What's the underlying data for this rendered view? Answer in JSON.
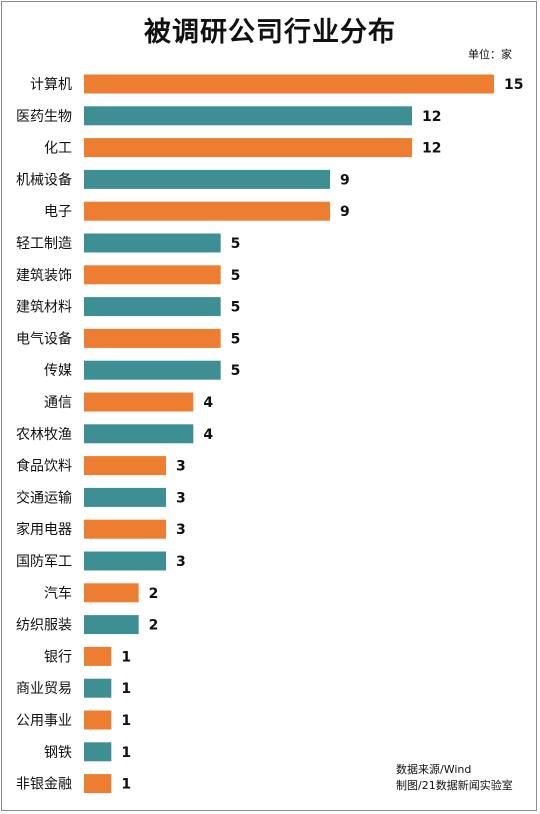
{
  "title": "被调研公司行业分布",
  "unit_label": "单位：家",
  "source": {
    "line1": "数据来源/Wind",
    "line2": "制图/21数据新闻实验室"
  },
  "colors": {
    "orange": "#ed7d31",
    "teal": "#3d8f93"
  },
  "chart_data": {
    "type": "bar",
    "orientation": "horizontal",
    "title": "被调研公司行业分布",
    "unit": "单位：家",
    "xlim": [
      0,
      15
    ],
    "grid": false,
    "categories": [
      "计算机",
      "医药生物",
      "化工",
      "机械设备",
      "电子",
      "轻工制造",
      "建筑装饰",
      "建筑材料",
      "电气设备",
      "传媒",
      "通信",
      "农林牧渔",
      "食品饮料",
      "交通运输",
      "家用电器",
      "国防军工",
      "汽车",
      "纺织服装",
      "银行",
      "商业贸易",
      "公用事业",
      "钢铁",
      "非银金融"
    ],
    "values": [
      15,
      12,
      12,
      9,
      9,
      5,
      5,
      5,
      5,
      5,
      4,
      4,
      3,
      3,
      3,
      3,
      2,
      2,
      1,
      1,
      1,
      1,
      1
    ],
    "bar_colors": [
      "orange",
      "teal",
      "orange",
      "teal",
      "orange",
      "teal",
      "orange",
      "teal",
      "orange",
      "teal",
      "orange",
      "teal",
      "orange",
      "teal",
      "orange",
      "teal",
      "orange",
      "teal",
      "orange",
      "teal",
      "orange",
      "teal",
      "orange"
    ]
  }
}
